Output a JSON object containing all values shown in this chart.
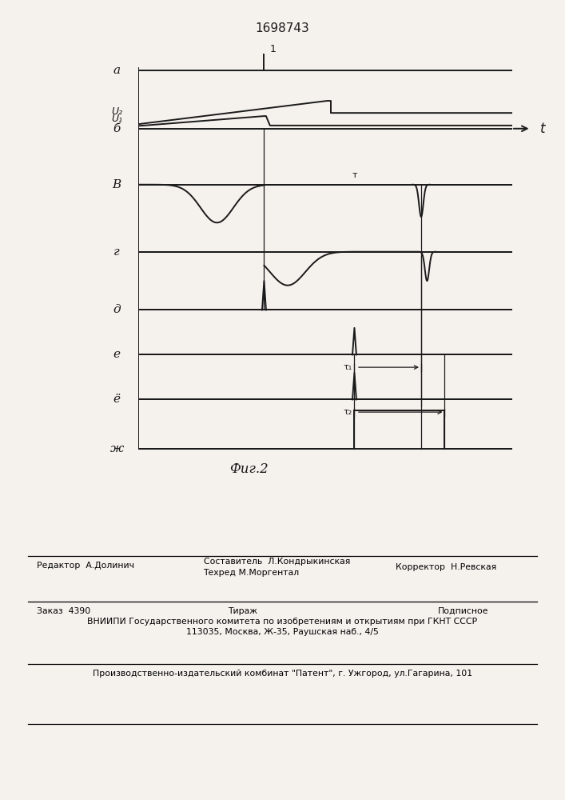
{
  "title": "1698743",
  "fig_caption": "Фиг.2",
  "bg_color": "#f5f2ee",
  "line_color": "#1a1a1a",
  "channel_labels": [
    "а",
    "б",
    "В",
    "г",
    "д",
    "е",
    "ё",
    "ж"
  ],
  "footer_editor": "Редактор  А.Долинич",
  "footer_compiler_label": "Составитель  Л.Кондрыкинская",
  "footer_techred": "Техред М.Моргентал",
  "footer_corrector": "Корректор  Н.Ревская",
  "footer_order": "Заказ  4390",
  "footer_tirazh": "Тираж",
  "footer_podpisnoe": "Подписное",
  "footer_vniip1": "ВНИИПИ Государственного комитета по изобретениям и открытиям при ГКНТ СССР",
  "footer_vniip2": "113035, Москва, Ж-35, Раушская наб., 4/5",
  "footer_patent": "Производственно-издательский комбинат \"Патент\", г. Ужгород, ул.Гагарина, 101"
}
